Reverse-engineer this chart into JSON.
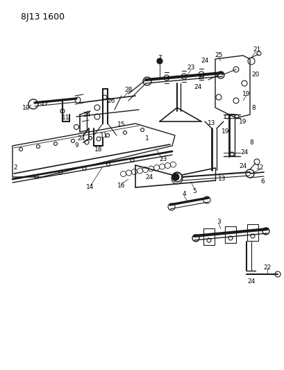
{
  "title": "8J13 1600",
  "bg": "#ffffff",
  "lc": "#1a1a1a",
  "tc": "#000000",
  "fig_w": 4.09,
  "fig_h": 5.33,
  "dpi": 100
}
